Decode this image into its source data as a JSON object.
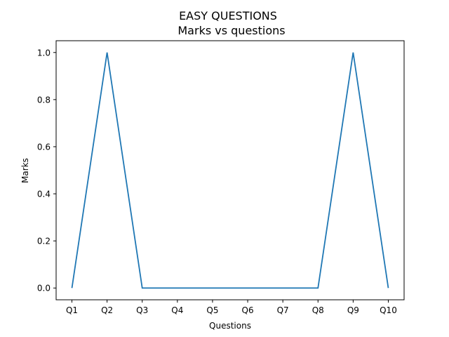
{
  "chart_data": {
    "type": "line",
    "suptitle": "EASY QUESTIONS",
    "title": "Marks vs questions",
    "xlabel": "Questions",
    "ylabel": "Marks",
    "categories": [
      "Q1",
      "Q2",
      "Q3",
      "Q4",
      "Q5",
      "Q6",
      "Q7",
      "Q8",
      "Q9",
      "Q10"
    ],
    "series": [
      {
        "values": [
          0,
          1,
          0,
          0,
          0,
          0,
          0,
          0,
          1,
          0
        ],
        "color": "#1f77b4"
      }
    ],
    "yticks": [
      "0.0",
      "0.2",
      "0.4",
      "0.6",
      "0.8",
      "1.0"
    ],
    "ylim": [
      -0.05,
      1.05
    ],
    "grid": false,
    "legend": "none"
  }
}
